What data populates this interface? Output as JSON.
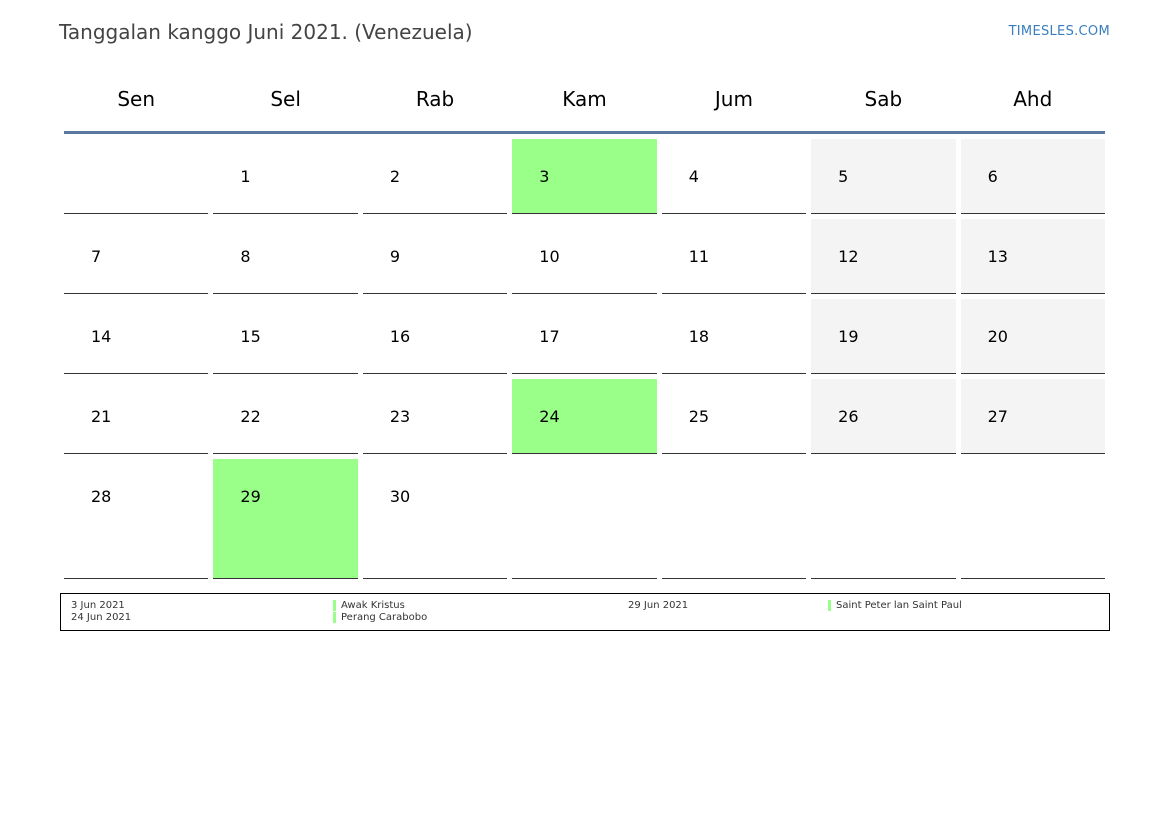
{
  "header": {
    "title": "Tanggalan kanggo Juni 2021. (Venezuela)",
    "site": "TIMESLES.COM"
  },
  "calendar": {
    "weekdays": [
      "Sen",
      "Sel",
      "Rab",
      "Kam",
      "Jum",
      "Sab",
      "Ahd"
    ],
    "weeks": [
      [
        "",
        "1",
        "2",
        "3",
        "4",
        "5",
        "6"
      ],
      [
        "7",
        "8",
        "9",
        "10",
        "11",
        "12",
        "13"
      ],
      [
        "14",
        "15",
        "16",
        "17",
        "18",
        "19",
        "20"
      ],
      [
        "21",
        "22",
        "23",
        "24",
        "25",
        "26",
        "27"
      ],
      [
        "28",
        "29",
        "30",
        "",
        "",
        "",
        ""
      ]
    ],
    "holidays": [
      "3",
      "24",
      "29"
    ],
    "holiday_color": "#99ff88",
    "weekend_color": "#f4f4f4",
    "header_rule_color": "#5a7aa0"
  },
  "legend": {
    "items": [
      {
        "date": "3 Jun 2021",
        "name": "Awak Kristus"
      },
      {
        "date": "24 Jun 2021",
        "name": "Perang Carabobo"
      },
      {
        "date": "29 Jun 2021",
        "name": "Saint Peter lan Saint Paul"
      }
    ]
  }
}
